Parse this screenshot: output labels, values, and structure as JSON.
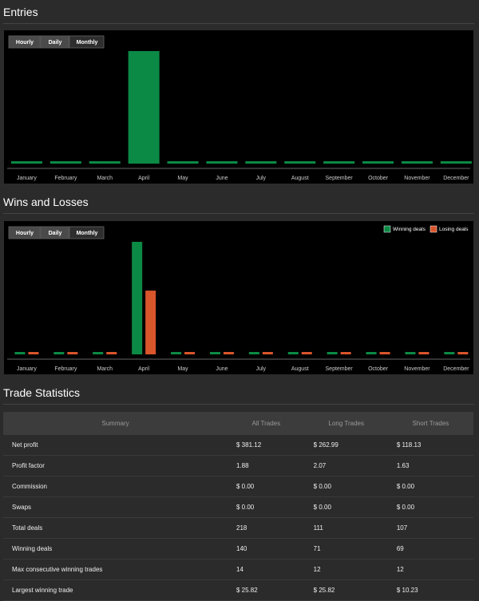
{
  "chart_data": [
    {
      "type": "bar",
      "title": "Entries",
      "tabs": [
        "Hourly",
        "Daily",
        "Monthly"
      ],
      "active_tab": "Monthly",
      "categories": [
        "January",
        "February",
        "March",
        "April",
        "May",
        "June",
        "July",
        "August",
        "September",
        "October",
        "November",
        "December"
      ],
      "values": [
        0,
        0,
        0,
        218,
        0,
        0,
        0,
        0,
        0,
        0,
        0,
        0
      ],
      "color": "#0b8a45"
    },
    {
      "type": "grouped_bar",
      "title": "Wins and Losses",
      "tabs": [
        "Hourly",
        "Daily",
        "Monthly"
      ],
      "active_tab": "Monthly",
      "categories": [
        "January",
        "February",
        "March",
        "April",
        "May",
        "June",
        "July",
        "August",
        "September",
        "October",
        "November",
        "December"
      ],
      "legend": "top-right",
      "series": [
        {
          "name": "Winning deals",
          "color": "#0b8a45",
          "values": [
            0,
            0,
            0,
            140,
            0,
            0,
            0,
            0,
            0,
            0,
            0,
            0
          ]
        },
        {
          "name": "Losing deals",
          "color": "#d9552b",
          "values": [
            0,
            0,
            0,
            78,
            0,
            0,
            0,
            0,
            0,
            0,
            0,
            0
          ]
        }
      ]
    }
  ],
  "table": {
    "title": "Trade Statistics",
    "header": [
      "Summary",
      "All Trades",
      "Long Trades",
      "Short Trades"
    ],
    "rows": [
      [
        "Net profit",
        "$ 381.12",
        "$ 262.99",
        "$ 118.13"
      ],
      [
        "Profit factor",
        "1.88",
        "2.07",
        "1.63"
      ],
      [
        "Commission",
        "$ 0.00",
        "$ 0.00",
        "$ 0.00"
      ],
      [
        "Swaps",
        "$ 0.00",
        "$ 0.00",
        "$ 0.00"
      ],
      [
        "Total deals",
        "218",
        "111",
        "107"
      ],
      [
        "Winning deals",
        "140",
        "71",
        "69"
      ],
      [
        "Max consecutive winning trades",
        "14",
        "12",
        "12"
      ],
      [
        "Largest winning trade",
        "$ 25.82",
        "$ 25.82",
        "$ 10.23"
      ]
    ]
  }
}
